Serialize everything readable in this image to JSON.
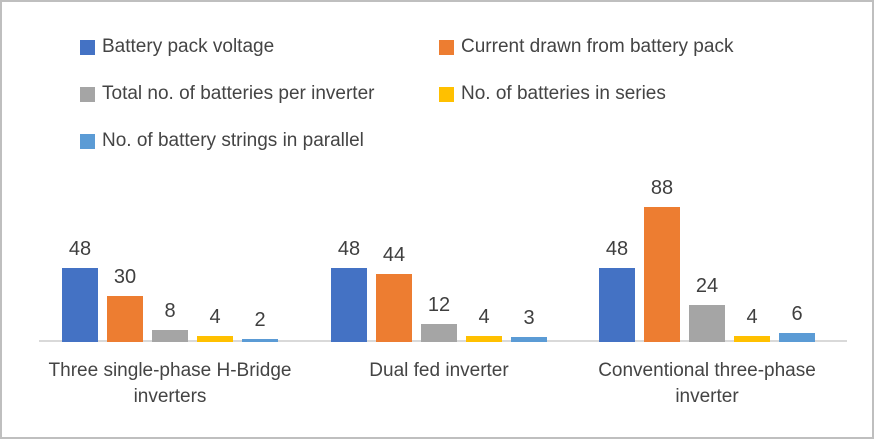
{
  "chart_data": {
    "type": "bar",
    "title": "",
    "categories": [
      "Three single-phase H-Bridge inverters",
      "Dual fed inverter",
      "Conventional three-phase inverter"
    ],
    "series": [
      {
        "name": "Battery pack voltage",
        "color": "#4472C4",
        "values": [
          48,
          48,
          48
        ]
      },
      {
        "name": "Current drawn from battery pack",
        "color": "#ED7D31",
        "values": [
          30,
          44,
          88
        ]
      },
      {
        "name": "Total no. of batteries per inverter",
        "color": "#A5A5A5",
        "values": [
          8,
          12,
          24
        ]
      },
      {
        "name": "No. of batteries in series",
        "color": "#FFC000",
        "values": [
          4,
          4,
          4
        ]
      },
      {
        "name": "No. of battery strings in parallel",
        "color": "#5B9BD5",
        "values": [
          2,
          3,
          6
        ]
      }
    ],
    "value_labels": true,
    "value_axis_visible": false,
    "gridlines": false,
    "legend_position": "top-left-two-columns",
    "ylim": [
      0,
      110
    ],
    "axis_line_color": "#d9d9d9",
    "label_text_color": "#404040",
    "border_color": "#bfbfbf"
  }
}
